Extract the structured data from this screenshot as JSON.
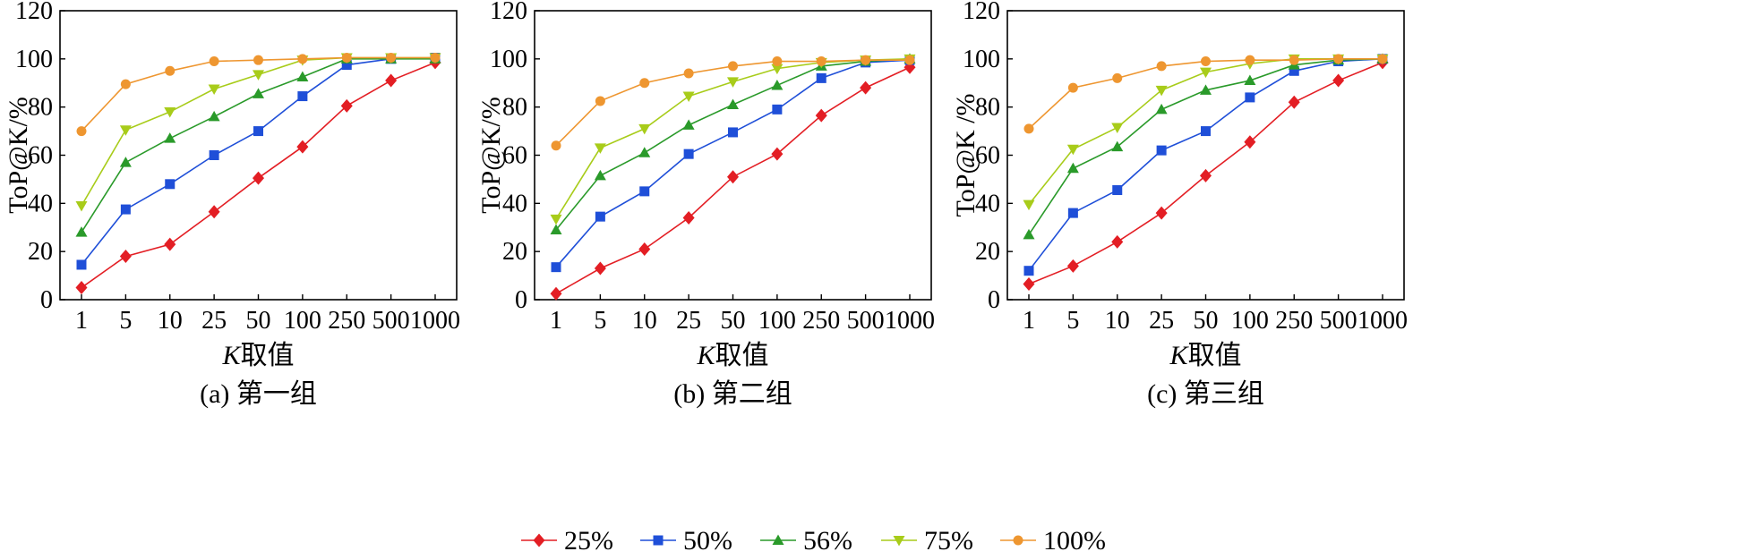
{
  "chart_data": [
    {
      "type": "line",
      "caption": "(a) 第一组",
      "ylabel": "ToP@K/%",
      "xlabel_italic": "K",
      "xlabel_rest": "取值",
      "categories": [
        "1",
        "5",
        "10",
        "25",
        "50",
        "100",
        "250",
        "500",
        "1000"
      ],
      "ylim": [
        0,
        120
      ],
      "yticks": [
        0,
        20,
        40,
        60,
        80,
        100,
        120
      ],
      "series": [
        {
          "name": "25%",
          "values": [
            5,
            18,
            23,
            36.5,
            50.5,
            63.5,
            80.5,
            91,
            98.5
          ]
        },
        {
          "name": "50%",
          "values": [
            14.5,
            37.5,
            48,
            60,
            70,
            84.5,
            97.5,
            100,
            100.5
          ]
        },
        {
          "name": "56%",
          "values": [
            28,
            57,
            67,
            76,
            85.5,
            92.5,
            100,
            100,
            100
          ]
        },
        {
          "name": "75%",
          "values": [
            39,
            70.5,
            78,
            87.5,
            93.5,
            99.5,
            100.5,
            100.5,
            100.5
          ]
        },
        {
          "name": "100%",
          "values": [
            70,
            89.5,
            95,
            99,
            99.5,
            100,
            100.5,
            100.5,
            100.5
          ]
        }
      ]
    },
    {
      "type": "line",
      "caption": "(b) 第二组",
      "ylabel": "ToP@K/%",
      "xlabel_italic": "K",
      "xlabel_rest": "取值",
      "categories": [
        "1",
        "5",
        "10",
        "25",
        "50",
        "100",
        "250",
        "500",
        "1000"
      ],
      "ylim": [
        0,
        120
      ],
      "yticks": [
        0,
        20,
        40,
        60,
        80,
        100,
        120
      ],
      "series": [
        {
          "name": "25%",
          "values": [
            2.5,
            13,
            21,
            34,
            51,
            60.5,
            76.5,
            88,
            96.5
          ]
        },
        {
          "name": "50%",
          "values": [
            13.5,
            34.5,
            45,
            60.5,
            69.5,
            79,
            92,
            98.5,
            99.5
          ]
        },
        {
          "name": "56%",
          "values": [
            29,
            51.5,
            61,
            72.5,
            81,
            89,
            97,
            99,
            100
          ]
        },
        {
          "name": "75%",
          "values": [
            33.5,
            63,
            71,
            84.5,
            90.5,
            96,
            98.5,
            99.5,
            100
          ]
        },
        {
          "name": "100%",
          "values": [
            64,
            82.5,
            90,
            94,
            97,
            99,
            99,
            99.5,
            99.5
          ]
        }
      ]
    },
    {
      "type": "line",
      "caption": "(c) 第三组",
      "ylabel": "ToP@K /%",
      "xlabel_italic": "K",
      "xlabel_rest": "取值",
      "categories": [
        "1",
        "5",
        "10",
        "25",
        "50",
        "100",
        "250",
        "500",
        "1000"
      ],
      "ylim": [
        0,
        120
      ],
      "yticks": [
        0,
        20,
        40,
        60,
        80,
        100,
        120
      ],
      "series": [
        {
          "name": "25%",
          "values": [
            6.5,
            14,
            24,
            36,
            51.5,
            65.5,
            82,
            91,
            98.5
          ]
        },
        {
          "name": "50%",
          "values": [
            12,
            36,
            45.5,
            62,
            70,
            84,
            95,
            99,
            100
          ]
        },
        {
          "name": "56%",
          "values": [
            27,
            54.5,
            63.5,
            79,
            87,
            91,
            97.5,
            99.5,
            100
          ]
        },
        {
          "name": "75%",
          "values": [
            39.5,
            62.5,
            71.5,
            87,
            94.5,
            98,
            100,
            100,
            100
          ]
        },
        {
          "name": "100%",
          "values": [
            71,
            88,
            92,
            97,
            99,
            99.5,
            99.5,
            100,
            100
          ]
        }
      ]
    }
  ],
  "legend": {
    "position": "bottom",
    "items": [
      {
        "label": "25%",
        "color": "#e31e24",
        "marker": "diamond"
      },
      {
        "label": "50%",
        "color": "#1f4fd8",
        "marker": "square"
      },
      {
        "label": "56%",
        "color": "#2a9a2a",
        "marker": "triangle-up"
      },
      {
        "label": "75%",
        "color": "#a8cc1a",
        "marker": "triangle-down"
      },
      {
        "label": "100%",
        "color": "#ee9630",
        "marker": "circle"
      }
    ]
  }
}
